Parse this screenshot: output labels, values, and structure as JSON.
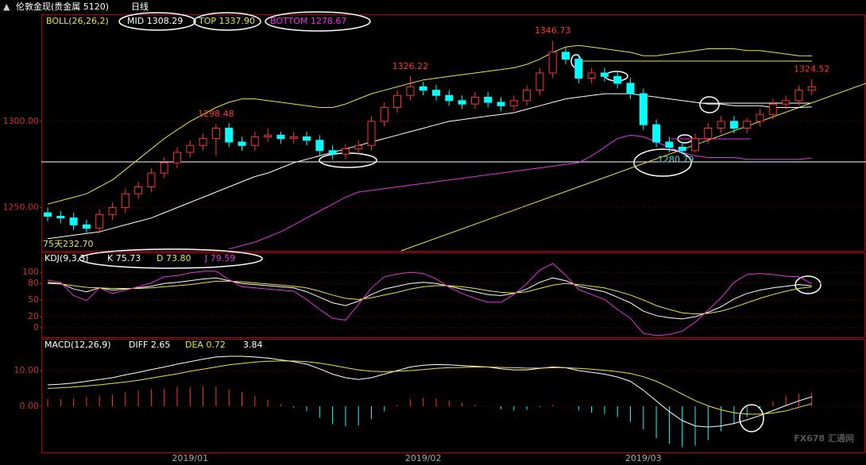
{
  "header": {
    "title": "伦敦金现(贵金属 5120)",
    "period": "日线"
  },
  "watermark": "FX678 汇通网",
  "chart_data": [
    {
      "type": "candlestick",
      "legend_title": "BOLL(26,26,2)",
      "legend": [
        "MID 1308.29",
        "TOP 1337.90",
        "BOTTOM 1278.67"
      ],
      "annotation": "75天232.70",
      "up_color": "#ff3232",
      "down_color": "#00ffff",
      "grid": true,
      "ylim": [
        1225,
        1362
      ],
      "yticks": [
        {
          "value": 1250,
          "label": "1250.00"
        },
        {
          "value": 1300,
          "label": "1300.00"
        }
      ],
      "open": [
        1247,
        1245,
        1244,
        1240,
        1238,
        1246,
        1250,
        1258,
        1262,
        1270,
        1276,
        1282,
        1286,
        1290,
        1296,
        1288,
        1286,
        1291,
        1292,
        1290,
        1291,
        1289,
        1283,
        1281,
        1284,
        1286,
        1300,
        1308,
        1315,
        1320,
        1318,
        1315,
        1312,
        1310,
        1314,
        1311,
        1309,
        1312,
        1318,
        1328,
        1340,
        1336,
        1325,
        1328,
        1326,
        1322,
        1316,
        1298,
        1288,
        1285,
        1283,
        1290,
        1296,
        1300,
        1296,
        1300,
        1304,
        1310,
        1312,
        1318
      ],
      "high": [
        1250,
        1248,
        1247,
        1243,
        1249,
        1253,
        1261,
        1265,
        1273,
        1279,
        1285,
        1289,
        1293,
        1298.48,
        1299,
        1291,
        1294,
        1296,
        1294,
        1294,
        1294,
        1292,
        1286,
        1287,
        1289,
        1303,
        1311,
        1318,
        1326.22,
        1323,
        1321,
        1318,
        1315,
        1317,
        1317,
        1314,
        1315,
        1321,
        1331,
        1346.73,
        1343,
        1339,
        1331,
        1331,
        1329,
        1325,
        1319,
        1301,
        1291,
        1288,
        1293,
        1299,
        1303,
        1303,
        1302,
        1307,
        1313,
        1315,
        1321,
        1324.52
      ],
      "low": [
        1242,
        1241,
        1237,
        1235,
        1235,
        1243,
        1247,
        1255,
        1259,
        1267,
        1273,
        1279,
        1283,
        1280,
        1285,
        1283,
        1283,
        1288,
        1287,
        1287,
        1286,
        1280,
        1278,
        1278,
        1281,
        1283,
        1297,
        1305,
        1312,
        1315,
        1312,
        1309,
        1307,
        1307,
        1308,
        1306,
        1306,
        1309,
        1315,
        1325,
        1333,
        1322,
        1322,
        1323,
        1319,
        1313,
        1295,
        1285,
        1282,
        1280.79,
        1282,
        1287,
        1293,
        1293,
        1293,
        1297,
        1301,
        1307,
        1309,
        1315
      ],
      "close": [
        1245,
        1244,
        1240,
        1238,
        1246,
        1250,
        1258,
        1262,
        1270,
        1276,
        1282,
        1286,
        1290,
        1296,
        1288,
        1286,
        1291,
        1292,
        1290,
        1291,
        1289,
        1283,
        1281,
        1284,
        1286,
        1300,
        1308,
        1315,
        1320,
        1318,
        1315,
        1312,
        1310,
        1314,
        1311,
        1309,
        1312,
        1318,
        1328,
        1340,
        1336,
        1325,
        1328,
        1326,
        1322,
        1316,
        1298,
        1288,
        1285,
        1283,
        1290,
        1296,
        1300,
        1296,
        1300,
        1304,
        1310,
        1312,
        1318,
        1320
      ],
      "series": [
        {
          "color": "#ffffff",
          "values": [
            1232,
            1233,
            1234,
            1235,
            1236,
            1238,
            1240,
            1242,
            1244,
            1247,
            1250,
            1253,
            1256,
            1259,
            1262,
            1265,
            1268,
            1270,
            1273,
            1276,
            1278,
            1280,
            1282,
            1284,
            1286,
            1288,
            1290,
            1292,
            1294,
            1296,
            1298,
            1300,
            1301,
            1302,
            1303,
            1304,
            1305,
            1307,
            1309,
            1311,
            1313,
            1314,
            1315,
            1316,
            1316,
            1316,
            1315,
            1314,
            1313,
            1312,
            1311,
            1310,
            1310,
            1309,
            1309,
            1309,
            1308,
            1308,
            1308,
            1308.29
          ]
        },
        {
          "color": "#e6e632",
          "values": [
            1252,
            1254,
            1256,
            1258,
            1262,
            1266,
            1272,
            1278,
            1284,
            1290,
            1295,
            1300,
            1304,
            1308,
            1311,
            1313,
            1313,
            1312,
            1311,
            1310,
            1309,
            1308,
            1308,
            1310,
            1313,
            1316,
            1318,
            1320,
            1322,
            1324,
            1325,
            1326,
            1327,
            1328,
            1329,
            1330,
            1331,
            1333,
            1336,
            1340,
            1343,
            1344,
            1343,
            1342,
            1341,
            1340,
            1338,
            1338,
            1339,
            1340,
            1341,
            1342,
            1342,
            1342,
            1341,
            1341,
            1340,
            1339,
            1338,
            1337.9
          ]
        },
        {
          "color": "#e632e6",
          "values": [
            null,
            null,
            null,
            null,
            null,
            null,
            null,
            null,
            null,
            null,
            null,
            null,
            null,
            null,
            1226,
            1228,
            1230,
            1233,
            1236,
            1240,
            1244,
            1248,
            1252,
            1256,
            1259,
            1260,
            1261,
            1262,
            1263,
            1264,
            1265,
            1266,
            1267,
            1268,
            1269,
            1270,
            1271,
            1272,
            1273,
            1274,
            1275,
            1276,
            1280,
            1285,
            1290,
            1292,
            1291,
            1288,
            1285,
            1282,
            1280,
            1279,
            1279,
            1279,
            1278,
            1278,
            1278,
            1278,
            1278,
            1278.67
          ]
        }
      ]
    },
    {
      "type": "line",
      "legend_title": "KDJ(9,3,3)",
      "legend": [
        "K 75.73",
        "D 73.80",
        "J 79.59"
      ],
      "grid": true,
      "ylim": [
        -17,
        136
      ],
      "yticks": [
        0,
        20,
        50,
        80,
        100
      ],
      "series": [
        {
          "color": "#ffffff",
          "values": [
            82,
            80,
            70,
            65,
            72,
            68,
            70,
            72,
            75,
            80,
            82,
            85,
            88,
            90,
            85,
            80,
            78,
            76,
            74,
            72,
            65,
            55,
            45,
            40,
            48,
            60,
            70,
            75,
            80,
            82,
            80,
            75,
            70,
            65,
            60,
            58,
            62,
            70,
            82,
            90,
            85,
            75,
            70,
            65,
            55,
            45,
            30,
            22,
            18,
            16,
            20,
            28,
            38,
            52,
            62,
            68,
            72,
            75,
            78,
            75.73
          ]
        },
        {
          "color": "#e6e632",
          "values": [
            80,
            79,
            76,
            73,
            72,
            71,
            71,
            71,
            72,
            74,
            76,
            78,
            81,
            84,
            84,
            83,
            81,
            79,
            77,
            75,
            72,
            66,
            59,
            53,
            51,
            54,
            59,
            64,
            70,
            74,
            76,
            76,
            74,
            71,
            67,
            64,
            63,
            65,
            71,
            77,
            80,
            78,
            75,
            72,
            66,
            59,
            50,
            40,
            33,
            27,
            25,
            26,
            30,
            37,
            45,
            53,
            60,
            66,
            71,
            73.8
          ]
        },
        {
          "color": "#e632e6",
          "values": [
            86,
            82,
            58,
            49,
            72,
            62,
            68,
            74,
            81,
            92,
            94,
            99,
            102,
            102,
            87,
            74,
            72,
            70,
            68,
            66,
            51,
            33,
            17,
            14,
            42,
            72,
            92,
            97,
            100,
            98,
            88,
            73,
            62,
            53,
            46,
            46,
            60,
            80,
            104,
            116,
            95,
            69,
            60,
            51,
            33,
            17,
            -10,
            -14,
            -12,
            -6,
            10,
            32,
            54,
            82,
            96,
            98,
            96,
            93,
            92,
            79.59
          ]
        }
      ]
    },
    {
      "type": "macd",
      "legend_title": "MACD(12,26,9)",
      "legend": [
        "DIFF 2.65",
        "DEA 0.72",
        "3.84"
      ],
      "grid": true,
      "up_color": "#ff3232",
      "down_color": "#00ffff",
      "ylim": [
        -12.9,
        18.9
      ],
      "yticks": [
        {
          "value": 10,
          "label": "10.00"
        },
        {
          "value": 0,
          "label": "0.00"
        }
      ],
      "categories": [
        null,
        null,
        null,
        null,
        null,
        null,
        null,
        null,
        null,
        null,
        null,
        "2019/01",
        null,
        null,
        null,
        null,
        null,
        null,
        null,
        null,
        null,
        null,
        null,
        null,
        null,
        null,
        null,
        null,
        null,
        "2019/02",
        null,
        null,
        null,
        null,
        null,
        null,
        null,
        null,
        null,
        null,
        null,
        null,
        null,
        null,
        null,
        null,
        "2019/03",
        null,
        null,
        null,
        null,
        null,
        null,
        null,
        null,
        null,
        null,
        null,
        null,
        null
      ],
      "values": [
        2,
        2,
        2.2,
        2.6,
        3,
        3.2,
        4,
        4.4,
        4.8,
        5,
        5.4,
        5.4,
        5.6,
        5.6,
        4.8,
        4,
        2.8,
        1.8,
        0.6,
        -0.4,
        -1.4,
        -3.2,
        -5,
        -5.6,
        -5.4,
        -3.6,
        -1.4,
        0.4,
        2,
        2.4,
        2.2,
        1.6,
        1,
        0.4,
        0,
        -0.8,
        -1.2,
        -1,
        -0.2,
        0.4,
        0,
        -1.2,
        -1.8,
        -2.2,
        -3,
        -4.4,
        -6.5,
        -9,
        -10.5,
        -11.5,
        -11,
        -9.5,
        -7,
        -5,
        -3,
        -0.8,
        1.4,
        3,
        3.6,
        3.84
      ],
      "series": [
        {
          "color": "#ffffff",
          "values": [
            6,
            6.2,
            6.5,
            7,
            7.5,
            8,
            8.8,
            9.5,
            10.3,
            11,
            11.8,
            12.5,
            13.2,
            13.8,
            14,
            14,
            13.8,
            13.5,
            13,
            12.5,
            11.8,
            10.5,
            9,
            8,
            7.5,
            8,
            9,
            10,
            11,
            11.5,
            11.7,
            11.6,
            11.4,
            11.2,
            11,
            10.5,
            10.2,
            10.2,
            10.6,
            11,
            10.8,
            10,
            9.5,
            9,
            8.2,
            7,
            4.5,
            1.5,
            -1.5,
            -4,
            -5.5,
            -5.8,
            -5.5,
            -4.8,
            -3.8,
            -2.6,
            -1.2,
            0.2,
            1.5,
            2.65
          ]
        },
        {
          "color": "#e6e632",
          "values": [
            5,
            5.2,
            5.4,
            5.7,
            6,
            6.4,
            6.8,
            7.3,
            7.9,
            8.5,
            9.1,
            9.8,
            10.4,
            11,
            11.6,
            12,
            12.4,
            12.6,
            12.7,
            12.7,
            12.5,
            12.1,
            11.5,
            10.8,
            10.2,
            9.8,
            9.7,
            9.8,
            10,
            10.3,
            10.6,
            10.8,
            10.9,
            11,
            11,
            10.9,
            10.8,
            10.7,
            10.7,
            10.8,
            10.8,
            10.6,
            10.4,
            10.1,
            9.7,
            9.2,
            8.3,
            7,
            5.3,
            3.4,
            1.6,
            0.1,
            -1,
            -1.8,
            -2.2,
            -2.2,
            -1.9,
            -1.3,
            -0.3,
            0.72
          ]
        }
      ]
    }
  ]
}
